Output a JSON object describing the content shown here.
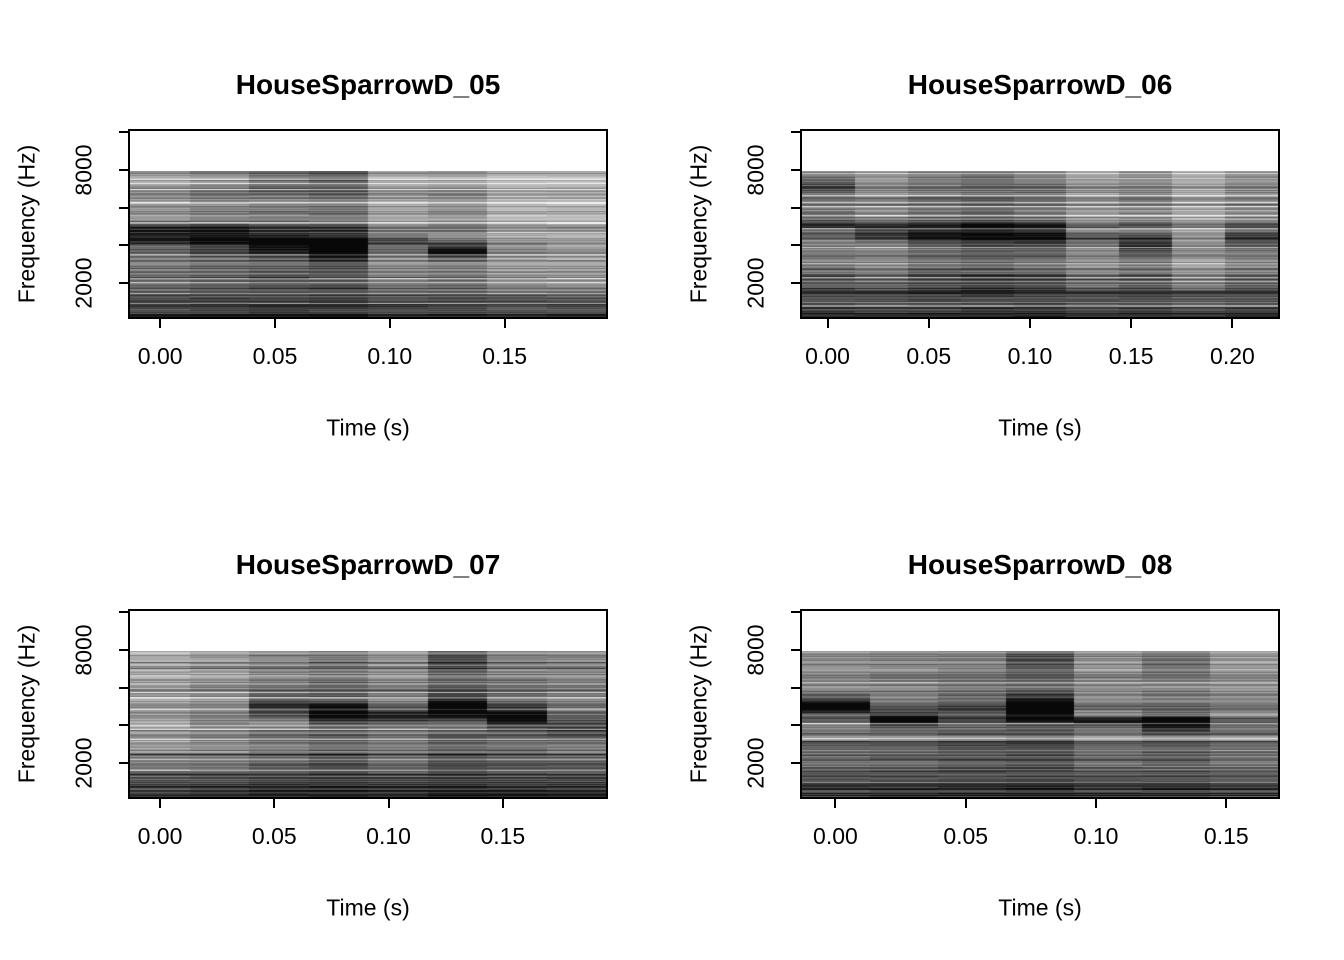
{
  "figure": {
    "background": "#ffffff",
    "text_color": "#000000",
    "layout": "2x2 grid of spectrogram panels"
  },
  "chart_data": [
    {
      "type": "heatmap",
      "subtype": "spectrogram",
      "title": "HouseSparrowD_05",
      "xlabel": "Time (s)",
      "ylabel": "Frequency (Hz)",
      "xlim": [
        -0.014,
        0.195
      ],
      "ylim_hz": [
        100,
        10160
      ],
      "data_freq_top_hz": 8000,
      "x_ticks": [
        {
          "t": 0.0,
          "label": "0.00"
        },
        {
          "t": 0.05,
          "label": "0.05"
        },
        {
          "t": 0.1,
          "label": "0.10"
        },
        {
          "t": 0.15,
          "label": "0.15"
        }
      ],
      "y_ticks_hz": [
        2000,
        4000,
        6000,
        8000,
        10000
      ],
      "y_labeled_ticks_hz": [
        2000,
        8000
      ],
      "y_tick_labels": [
        "2000",
        "8000"
      ],
      "n_time_bins": 8,
      "seed": 1105,
      "columns": {
        "shade": [
          0.0,
          0.05,
          0.08,
          0.1,
          -0.05,
          -0.02,
          -0.12,
          -0.13
        ],
        "band_hz": [
          4500,
          4400,
          4150,
          3950,
          4100,
          3700,
          3900,
          3800
        ],
        "band_strength": [
          0.45,
          0.45,
          0.46,
          0.55,
          0.24,
          0.48,
          0.06,
          0.04
        ],
        "band_sigma_hz": [
          420,
          480,
          480,
          500,
          350,
          280,
          300,
          300
        ],
        "band2_hz": [
          0,
          0,
          7400,
          7500,
          0,
          0,
          0,
          0
        ],
        "band2_strength": [
          0,
          0,
          0.1,
          0.12,
          0,
          0,
          0,
          0
        ],
        "band2_sigma_hz": [
          400,
          400,
          400,
          450,
          400,
          400,
          400,
          400
        ]
      }
    },
    {
      "type": "heatmap",
      "subtype": "spectrogram",
      "title": "HouseSparrowD_06",
      "xlabel": "Time (s)",
      "ylabel": "Frequency (Hz)",
      "xlim": [
        -0.0136,
        0.2235
      ],
      "ylim_hz": [
        100,
        10160
      ],
      "data_freq_top_hz": 8000,
      "x_ticks": [
        {
          "t": 0.0,
          "label": "0.00"
        },
        {
          "t": 0.05,
          "label": "0.05"
        },
        {
          "t": 0.1,
          "label": "0.10"
        },
        {
          "t": 0.15,
          "label": "0.15"
        },
        {
          "t": 0.2,
          "label": "0.20"
        }
      ],
      "y_ticks_hz": [
        2000,
        4000,
        6000,
        8000,
        10000
      ],
      "y_labeled_ticks_hz": [
        2000,
        8000
      ],
      "y_tick_labels": [
        "2000",
        "8000"
      ],
      "n_time_bins": 9,
      "seed": 1206,
      "columns": {
        "shade": [
          0.02,
          -0.02,
          0.06,
          0.1,
          0.06,
          -0.06,
          0.0,
          -0.12,
          -0.02
        ],
        "band_hz": [
          5200,
          4700,
          4600,
          4600,
          4500,
          4300,
          4000,
          3900,
          4300
        ],
        "band_strength": [
          0.15,
          0.28,
          0.32,
          0.34,
          0.36,
          0.2,
          0.34,
          0.1,
          0.25
        ],
        "band_sigma_hz": [
          400,
          400,
          420,
          450,
          450,
          350,
          380,
          300,
          400
        ],
        "band2_hz": [
          7200,
          0,
          0,
          0,
          0,
          0,
          0,
          0,
          0
        ],
        "band2_strength": [
          0.2,
          0,
          0,
          0,
          0,
          0,
          0,
          0,
          0
        ],
        "band2_sigma_hz": [
          350,
          400,
          400,
          400,
          400,
          400,
          400,
          400,
          400
        ]
      }
    },
    {
      "type": "heatmap",
      "subtype": "spectrogram",
      "title": "HouseSparrowD_07",
      "xlabel": "Time (s)",
      "ylabel": "Frequency (Hz)",
      "xlim": [
        -0.014,
        0.196
      ],
      "ylim_hz": [
        100,
        10160
      ],
      "data_freq_top_hz": 8000,
      "x_ticks": [
        {
          "t": 0.0,
          "label": "0.00"
        },
        {
          "t": 0.05,
          "label": "0.05"
        },
        {
          "t": 0.1,
          "label": "0.10"
        },
        {
          "t": 0.15,
          "label": "0.15"
        }
      ],
      "y_ticks_hz": [
        2000,
        4000,
        6000,
        8000,
        10000
      ],
      "y_labeled_ticks_hz": [
        2000,
        8000
      ],
      "y_tick_labels": [
        "2000",
        "8000"
      ],
      "n_time_bins": 8,
      "seed": 1307,
      "columns": {
        "shade": [
          -0.12,
          -0.08,
          0.0,
          0.05,
          -0.03,
          0.08,
          0.03,
          0.0
        ],
        "band_hz": [
          4600,
          4100,
          5000,
          4650,
          4450,
          4900,
          4400,
          3950
        ],
        "band_strength": [
          0.02,
          0.1,
          0.28,
          0.44,
          0.36,
          0.52,
          0.5,
          0.28
        ],
        "band_sigma_hz": [
          200,
          300,
          380,
          420,
          380,
          420,
          400,
          350
        ],
        "band2_hz": [
          0,
          0,
          0,
          0,
          0,
          7500,
          0,
          0
        ],
        "band2_strength": [
          0,
          0,
          0,
          0,
          0,
          0.14,
          0,
          0
        ],
        "band2_sigma_hz": [
          400,
          400,
          400,
          400,
          400,
          400,
          400,
          400
        ]
      }
    },
    {
      "type": "heatmap",
      "subtype": "spectrogram",
      "title": "HouseSparrowD_08",
      "xlabel": "Time (s)",
      "ylabel": "Frequency (Hz)",
      "xlim": [
        -0.0136,
        0.1706
      ],
      "ylim_hz": [
        100,
        10160
      ],
      "data_freq_top_hz": 8000,
      "x_ticks": [
        {
          "t": 0.0,
          "label": "0.00"
        },
        {
          "t": 0.05,
          "label": "0.05"
        },
        {
          "t": 0.1,
          "label": "0.10"
        },
        {
          "t": 0.15,
          "label": "0.15"
        }
      ],
      "y_ticks_hz": [
        2000,
        4000,
        6000,
        8000,
        10000
      ],
      "y_labeled_ticks_hz": [
        2000,
        8000
      ],
      "y_tick_labels": [
        "2000",
        "8000"
      ],
      "n_time_bins": 7,
      "seed": 1408,
      "columns": {
        "shade": [
          0.0,
          0.02,
          0.06,
          0.08,
          -0.02,
          0.02,
          -0.04
        ],
        "band_hz": [
          5000,
          4350,
          4600,
          4850,
          4200,
          4100,
          4000
        ],
        "band_strength": [
          0.52,
          0.46,
          0.16,
          0.54,
          0.3,
          0.5,
          0.12
        ],
        "band_sigma_hz": [
          350,
          280,
          400,
          500,
          220,
          300,
          400
        ],
        "band2_hz": [
          0,
          0,
          0,
          7400,
          0,
          7300,
          0
        ],
        "band2_strength": [
          0,
          0,
          0,
          0.16,
          0,
          0.1,
          0
        ],
        "band2_sigma_hz": [
          400,
          400,
          400,
          450,
          400,
          400,
          400
        ]
      }
    }
  ]
}
